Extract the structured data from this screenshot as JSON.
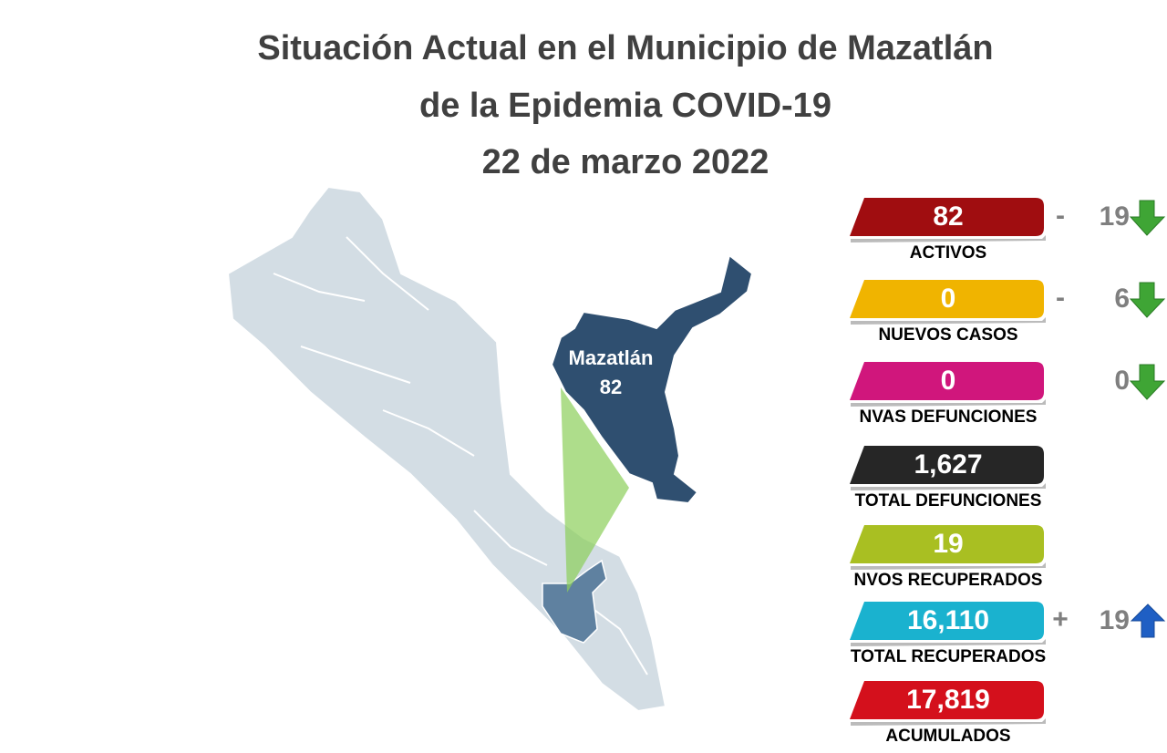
{
  "header": {
    "title_lines": [
      "Situación Actual en el Municipio de Mazatlán",
      "de la Epidemia COVID-19",
      "22 de marzo 2022"
    ]
  },
  "map": {
    "name": "Mazatlán",
    "value": "82"
  },
  "stats": [
    {
      "value": "82",
      "label": "ACTIVOS",
      "color": "#a00d10",
      "change_sign": "-",
      "change": "19",
      "trend": "down"
    },
    {
      "value": "0",
      "label": "NUEVOS CASOS",
      "color": "#f0b400",
      "change_sign": "-",
      "change": "6",
      "trend": "down"
    },
    {
      "value": "0",
      "label": "NVAS DEFUNCIONES",
      "color": "#d0167c",
      "change": "0",
      "trend": "down"
    },
    {
      "value": "1,627",
      "label": "TOTAL DEFUNCIONES",
      "color": "#262626"
    },
    {
      "value": "19",
      "label": "NVOS RECUPERADOS",
      "color": "#a9bf22"
    },
    {
      "value": "16,110",
      "label": "TOTAL RECUPERADOS",
      "color": "#1ab2cf",
      "change_sign": "+",
      "change": "19",
      "trend": "up"
    },
    {
      "value": "17,819",
      "label": "ACUMULADOS",
      "color": "#d4101c"
    }
  ]
}
